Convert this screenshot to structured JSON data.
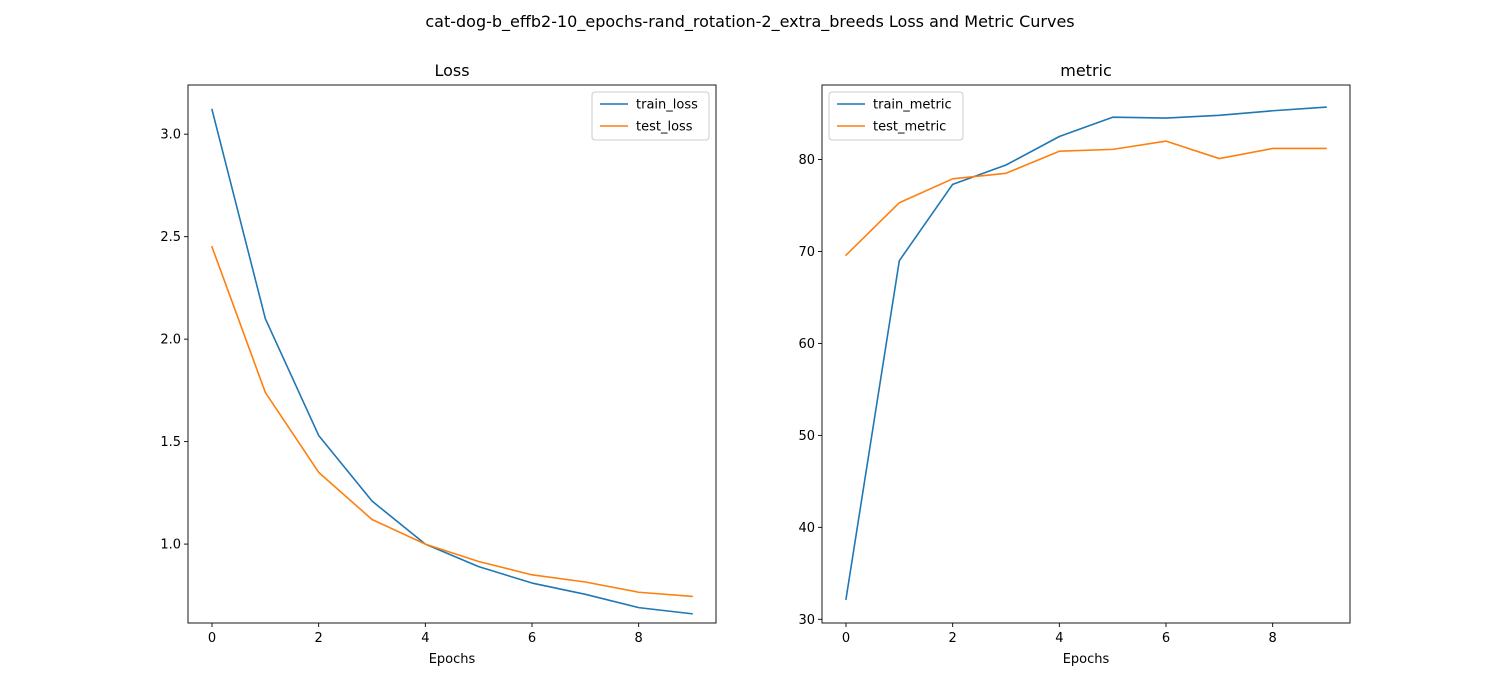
{
  "figure": {
    "title": "cat-dog-b_effb2-10_epochs-rand_rotation-2_extra_breeds Loss and Metric Curves"
  },
  "colors": {
    "train": "#1f77b4",
    "test": "#ff7f0e"
  },
  "chart_data": [
    {
      "type": "line",
      "title": "Loss",
      "xlabel": "Epochs",
      "ylabel": "",
      "x": [
        0,
        1,
        2,
        3,
        4,
        5,
        6,
        7,
        8,
        9
      ],
      "xlim": [
        -0.45,
        9.45
      ],
      "ylim": [
        0.615,
        3.24
      ],
      "xticks": [
        0,
        2,
        4,
        6,
        8
      ],
      "yticks": [
        1.0,
        1.5,
        2.0,
        2.5,
        3.0
      ],
      "ytick_labels": [
        "1.0",
        "1.5",
        "2.0",
        "2.5",
        "3.0"
      ],
      "legend": "top-right",
      "series": [
        {
          "name": "train_loss",
          "values": [
            3.12,
            2.1,
            1.53,
            1.21,
            1.0,
            0.89,
            0.81,
            0.755,
            0.69,
            0.66
          ]
        },
        {
          "name": "test_loss",
          "values": [
            2.45,
            1.74,
            1.35,
            1.12,
            1.0,
            0.915,
            0.85,
            0.815,
            0.765,
            0.745
          ]
        }
      ]
    },
    {
      "type": "line",
      "title": "metric",
      "xlabel": "Epochs",
      "ylabel": "",
      "x": [
        0,
        1,
        2,
        3,
        4,
        5,
        6,
        7,
        8,
        9
      ],
      "xlim": [
        -0.45,
        9.45
      ],
      "ylim": [
        29.6,
        88.1
      ],
      "xticks": [
        0,
        2,
        4,
        6,
        8
      ],
      "yticks": [
        30,
        40,
        50,
        60,
        70,
        80
      ],
      "ytick_labels": [
        "30",
        "40",
        "50",
        "60",
        "70",
        "80"
      ],
      "legend": "top-left",
      "series": [
        {
          "name": "train_metric",
          "values": [
            32.2,
            69.0,
            77.3,
            79.4,
            82.5,
            84.6,
            84.5,
            84.8,
            85.3,
            85.7
          ]
        },
        {
          "name": "test_metric",
          "values": [
            69.6,
            75.3,
            77.9,
            78.5,
            80.9,
            81.1,
            82.0,
            80.1,
            81.2,
            81.2
          ]
        }
      ]
    }
  ]
}
